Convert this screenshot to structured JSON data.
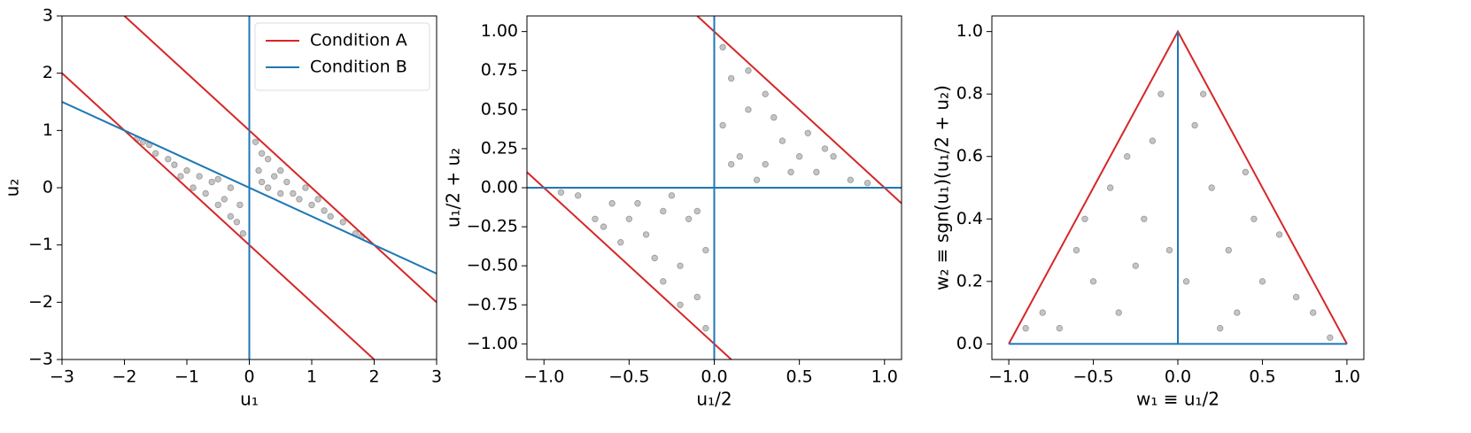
{
  "chart_data": [
    {
      "type": "scatter",
      "xlabel": "u₁",
      "ylabel": "u₂",
      "legend": "upper right",
      "xlim": [
        -3,
        3
      ],
      "ylim": [
        -3,
        3
      ],
      "xticks": [
        {
          "value": -3,
          "label": "−3"
        },
        {
          "value": -2,
          "label": "−2"
        },
        {
          "value": -1,
          "label": "−1"
        },
        0,
        1,
        2,
        3
      ],
      "yticks": [
        {
          "value": -3,
          "label": "−3"
        },
        {
          "value": -2,
          "label": "−2"
        },
        {
          "value": -1,
          "label": "−1"
        },
        0,
        1,
        2,
        3
      ],
      "point_color": "#555555",
      "x": [
        -1.8,
        -1.5,
        -1.6,
        -1.2,
        -1.0,
        -1.1,
        -0.8,
        -0.6,
        -0.5,
        -0.4,
        -0.3,
        -0.2,
        -0.1,
        -0.7,
        -0.9,
        -1.3,
        -0.3,
        -0.15,
        -0.5,
        -1.7,
        0.1,
        0.2,
        0.3,
        0.4,
        0.5,
        0.6,
        0.8,
        1.0,
        1.2,
        1.5,
        1.7,
        0.15,
        0.3,
        0.7,
        0.9,
        1.3,
        0.5,
        0.2,
        1.1,
        1.8
      ],
      "values": [
        0.85,
        0.6,
        0.75,
        0.4,
        0.3,
        0.2,
        0.2,
        0.1,
        -0.3,
        -0.2,
        -0.5,
        -0.6,
        -0.8,
        -0.1,
        0.0,
        0.5,
        0.0,
        -0.3,
        0.15,
        0.8,
        0.8,
        0.6,
        0.5,
        0.2,
        0.3,
        0.1,
        -0.2,
        -0.3,
        -0.4,
        -0.6,
        -0.8,
        0.3,
        0.0,
        -0.1,
        0.0,
        -0.5,
        -0.1,
        0.1,
        -0.2,
        -0.85
      ],
      "lines": [
        {
          "name": "Condition A",
          "color": "#d62728",
          "x": [
            -2,
            3,
            null,
            -3,
            2
          ],
          "y": [
            3,
            -2,
            null,
            2,
            -3
          ]
        },
        {
          "name": "Condition B",
          "color": "#1f77b4",
          "x": [
            -3,
            3,
            null,
            0,
            0
          ],
          "y": [
            1.5,
            -1.5,
            null,
            -3,
            3
          ]
        }
      ]
    },
    {
      "type": "scatter",
      "xlabel": "u₁/2",
      "ylabel": "u₁/2 + u₂",
      "xlim": [
        -1.1,
        1.1
      ],
      "ylim": [
        -1.1,
        1.1
      ],
      "xticks": [
        {
          "value": -1,
          "label": "−1.0"
        },
        {
          "value": -0.5,
          "label": "−0.5"
        },
        {
          "value": 0,
          "label": "0.0"
        },
        0.5,
        {
          "value": 1,
          "label": "1.0"
        }
      ],
      "yticks": [
        {
          "value": -1,
          "label": "−1.00"
        },
        {
          "value": -0.75,
          "label": "−0.75"
        },
        {
          "value": -0.5,
          "label": "−0.50"
        },
        {
          "value": -0.25,
          "label": "−0.25"
        },
        {
          "value": 0,
          "label": "0.00"
        },
        0.25,
        {
          "value": 0.5,
          "label": "0.50"
        },
        0.75,
        {
          "value": 1,
          "label": "1.00"
        }
      ],
      "point_color": "#555555",
      "x": [
        0.05,
        0.1,
        0.2,
        0.3,
        0.4,
        0.5,
        0.6,
        0.7,
        0.8,
        0.9,
        0.15,
        0.25,
        0.35,
        0.45,
        0.05,
        0.1,
        0.55,
        0.2,
        0.65,
        0.3,
        -0.05,
        -0.1,
        -0.2,
        -0.3,
        -0.4,
        -0.5,
        -0.6,
        -0.7,
        -0.8,
        -0.9,
        -0.15,
        -0.25,
        -0.35,
        -0.45,
        -0.05,
        -0.1,
        -0.55,
        -0.2,
        -0.65,
        -0.3
      ],
      "values": [
        0.9,
        0.7,
        0.5,
        0.6,
        0.3,
        0.2,
        0.1,
        0.2,
        0.05,
        0.03,
        0.2,
        0.05,
        0.45,
        0.1,
        0.4,
        0.15,
        0.35,
        0.75,
        0.25,
        0.15,
        -0.9,
        -0.7,
        -0.5,
        -0.6,
        -0.3,
        -0.2,
        -0.1,
        -0.2,
        -0.05,
        -0.03,
        -0.2,
        -0.05,
        -0.45,
        -0.1,
        -0.4,
        -0.15,
        -0.35,
        -0.75,
        -0.25,
        -0.15
      ],
      "lines": [
        {
          "color": "#d62728",
          "x": [
            -0.1,
            1.1,
            null,
            -1.1,
            0.1
          ],
          "y": [
            1.1,
            -0.1,
            null,
            0.1,
            -1.1
          ]
        },
        {
          "color": "#1f77b4",
          "x": [
            -1.1,
            1.1,
            null,
            0,
            0
          ],
          "y": [
            0,
            0,
            null,
            -1.1,
            1.1
          ]
        }
      ]
    },
    {
      "type": "scatter",
      "xlabel": "w₁ ≡ u₁/2",
      "ylabel": "w₂ ≡ sgn(u₁)(u₁/2 + u₂)",
      "xlim": [
        -1.1,
        1.1
      ],
      "ylim": [
        -0.05,
        1.05
      ],
      "xticks": [
        {
          "value": -1,
          "label": "−1.0"
        },
        {
          "value": -0.5,
          "label": "−0.5"
        },
        {
          "value": 0,
          "label": "0.0"
        },
        0.5,
        {
          "value": 1,
          "label": "1.0"
        }
      ],
      "yticks": [
        {
          "value": 0,
          "label": "0.0"
        },
        0.2,
        0.4,
        0.6,
        0.8,
        {
          "value": 1,
          "label": "1.0"
        }
      ],
      "point_color": "#555555",
      "x": [
        -0.8,
        -0.6,
        -0.5,
        -0.4,
        -0.3,
        -0.2,
        -0.1,
        -0.05,
        -0.7,
        -0.35,
        -0.15,
        -0.55,
        0.1,
        0.2,
        0.3,
        0.4,
        0.5,
        0.6,
        0.7,
        0.8,
        0.05,
        0.25,
        0.45,
        0.15,
        0.9,
        -0.9,
        0.35,
        -0.25
      ],
      "values": [
        0.1,
        0.3,
        0.2,
        0.5,
        0.6,
        0.4,
        0.8,
        0.3,
        0.05,
        0.1,
        0.65,
        0.4,
        0.7,
        0.5,
        0.3,
        0.55,
        0.2,
        0.35,
        0.15,
        0.1,
        0.2,
        0.05,
        0.4,
        0.8,
        0.02,
        0.05,
        0.1,
        0.25
      ],
      "lines": [
        {
          "color": "#d62728",
          "x": [
            -1,
            0,
            1
          ],
          "y": [
            0,
            1,
            0
          ]
        },
        {
          "color": "#1f77b4",
          "x": [
            -1,
            1,
            null,
            0,
            0
          ],
          "y": [
            0,
            0,
            null,
            0,
            1
          ]
        }
      ]
    }
  ]
}
